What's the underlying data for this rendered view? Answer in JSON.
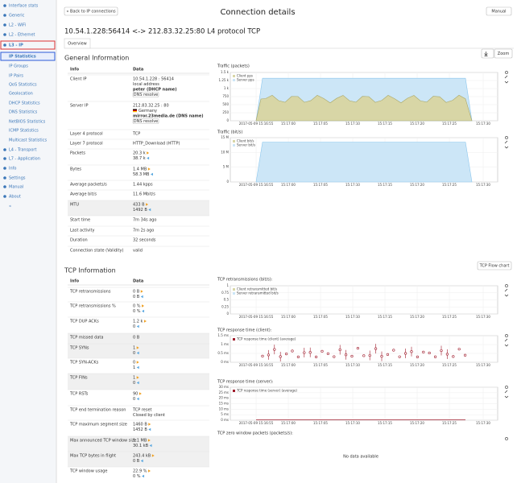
{
  "sidebar": {
    "items": [
      "Interface stats",
      "Generic",
      "L2 - WiFi",
      "L2 - Ethernet",
      "L3 - IP",
      "IP Statistics",
      "IP Groups",
      "IP Pairs",
      "QoS Statistics",
      "Geolocation",
      "DHCP Statistics",
      "DNS Statistics",
      "NetBIOS Statistics",
      "ICMP Statistics",
      "Multicast Statistics",
      "L4 - Transport",
      "L7 - Application",
      "Info",
      "Settings",
      "Manual",
      "About",
      "«"
    ]
  },
  "header": {
    "back": "« Back to IP connections",
    "title": "Connection details",
    "manual": "Manual",
    "subtitle": "10.54.1.228:56414 <-> 212.83.32.25:80 L4 protocol TCP",
    "tab": "Overview",
    "zoom": "Zoom"
  },
  "general": {
    "title": "General Information",
    "columns": [
      "Info",
      "Data"
    ],
    "rows": [
      {
        "label": "Client IP",
        "lines": [
          "10.54.1.228 : 56414",
          "local address",
          "peter (DHCP name)",
          "DNS resolve"
        ]
      },
      {
        "label": "Server IP",
        "lines": [
          "212.83.32.25 : 80",
          "Germany",
          "mirror.23media.de (DNS name)",
          "DNS resolve"
        ]
      },
      {
        "label": "Layer 4 protocol",
        "lines": [
          "TCP"
        ]
      },
      {
        "label": "Layer 7 protocol",
        "lines": [
          "HTTP_Download (HTTP)"
        ]
      },
      {
        "label": "Packets",
        "lines": [
          "20.3 k",
          "38.7 k"
        ]
      },
      {
        "label": "Bytes",
        "lines": [
          "1.4 MB",
          "58.3 MB"
        ]
      },
      {
        "label": "Average packets/s",
        "lines": [
          "1.44 kpps"
        ]
      },
      {
        "label": "Average bit/s",
        "lines": [
          "11.6 Mbit/s"
        ]
      },
      {
        "label": "MTU",
        "lines": [
          "433 B",
          "1492 B"
        ]
      },
      {
        "label": "Start time",
        "lines": [
          "7m 34s ago"
        ]
      },
      {
        "label": "Last activity",
        "lines": [
          "7m 2s ago"
        ]
      },
      {
        "label": "Duration",
        "lines": [
          "32 seconds"
        ]
      },
      {
        "label": "Connection state (Validity)",
        "lines": [
          "valid"
        ]
      }
    ]
  },
  "tcp": {
    "title": "TCP Information",
    "flow": "TCP Flow chart",
    "columns": [
      "Info",
      "Data"
    ],
    "rows": [
      {
        "label": "TCP retransmissions",
        "lines": [
          "0 B",
          "0 B"
        ]
      },
      {
        "label": "TCP retransmissions %",
        "lines": [
          "0 %",
          "0 %"
        ]
      },
      {
        "label": "TCP DUP ACKs",
        "lines": [
          "1.2 k",
          "0"
        ]
      },
      {
        "label": "TCP missed data",
        "lines": [
          "0 B"
        ]
      },
      {
        "label": "TCP SYNs",
        "lines": [
          "1",
          "0"
        ]
      },
      {
        "label": "TCP SYN-ACKs",
        "lines": [
          "0",
          "1"
        ]
      },
      {
        "label": "TCP FINs",
        "lines": [
          "1",
          "0"
        ]
      },
      {
        "label": "TCP RSTs",
        "lines": [
          "90",
          "0"
        ]
      },
      {
        "label": "TCP end termination reason",
        "lines": [
          "TCP reset",
          "Closed by client"
        ]
      },
      {
        "label": "TCP maximum segment size",
        "lines": [
          "1460 B",
          "1452 B"
        ]
      },
      {
        "label": "Max announced TCP window size",
        "lines": [
          "1.1 MB",
          "30.1 kB"
        ]
      },
      {
        "label": "Max TCP bytes in flight",
        "lines": [
          "243.4 kB",
          "0 B"
        ]
      },
      {
        "label": "TCP window usage",
        "lines": [
          "22.9 %",
          "0 %"
        ]
      }
    ]
  },
  "charts": [
    {
      "title": "Traffic (packets)",
      "legend": [
        "Client pps",
        "Server pps"
      ],
      "yticks": [
        "1.5 k",
        "1.25 k",
        "1 k",
        "750",
        "500",
        "250",
        "0"
      ]
    },
    {
      "title": "Traffic (bit/s)",
      "legend": [
        "Client bit/s",
        "Server bit/s"
      ],
      "yticks": [
        "15 M",
        "10 M",
        "5 M",
        "0"
      ]
    },
    {
      "title": "TCP retransmissions (bit/s):",
      "legend": [
        "Client retransmitted bit/s",
        "Server retransmitted bit/s"
      ],
      "yticks": [
        "1",
        "0.75",
        "0.5",
        "0.25",
        "0"
      ]
    },
    {
      "title": "TCP response time (client):",
      "legend": [
        "TCP response time (client) (average)"
      ],
      "yticks": [
        "1.5 ms",
        "1 ms",
        "0.5 ms",
        "0 ms"
      ]
    },
    {
      "title": "TCP response time (server):",
      "legend": [
        "TCP response time (server) (average)"
      ],
      "yticks": [
        "30 ms",
        "25 ms",
        "20 ms",
        "15 ms",
        "10 ms",
        "5 ms",
        "0 ms"
      ]
    },
    {
      "title": "TCP zero window packets (packets/s):",
      "empty": "No data available"
    }
  ],
  "xticks": [
    "2017-05-09 15:16:55",
    "15:17:00",
    "15:17:05",
    "15:17:10",
    "15:17:15",
    "15:17:20",
    "15:17:25",
    "15:17:30"
  ]
}
